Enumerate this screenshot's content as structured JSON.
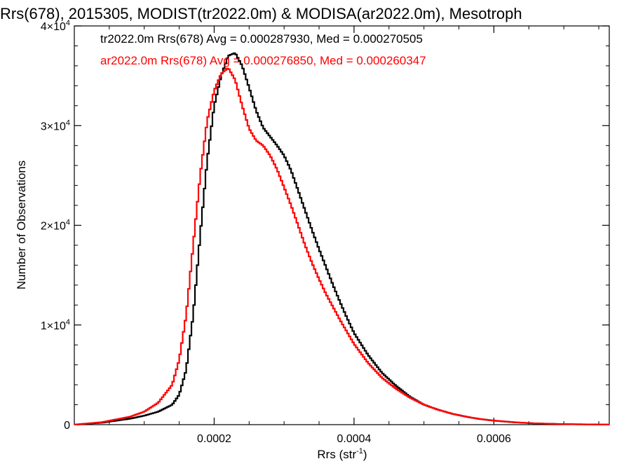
{
  "chart_data": {
    "type": "line",
    "title": "Rrs(678), 2015305, MODIST(tr2022.0m) & MODISA(ar2022.0m), Mesotroph",
    "xlabel": "Rrs (str",
    "xlabel_sup": "-1",
    "xlabel_end": ")",
    "ylabel": "Number of Observations",
    "xlim": [
      0.0,
      0.000765
    ],
    "ylim": [
      0,
      40000
    ],
    "grid": false,
    "x_ticks": [
      {
        "value": 0.0002,
        "label": "0.0002"
      },
      {
        "value": 0.0004,
        "label": "0.0004"
      },
      {
        "value": 0.0006,
        "label": "0.0006"
      }
    ],
    "y_ticks": [
      {
        "value": 0,
        "base": "0",
        "exp": ""
      },
      {
        "value": 10000,
        "base": "1×10",
        "exp": "4"
      },
      {
        "value": 20000,
        "base": "2×10",
        "exp": "4"
      },
      {
        "value": 30000,
        "base": "3×10",
        "exp": "4"
      },
      {
        "value": 40000,
        "base": "4×10",
        "exp": "4"
      }
    ],
    "legend_position": "top-left",
    "series": [
      {
        "name": "tr2022.0m Rrs(678)",
        "legend": "tr2022.0m Rrs(678) Avg = 0.000287930, Med = 0.000270505",
        "color": "#000000",
        "x": [
          0.0,
          4e-05,
          8e-05,
          0.0001,
          0.00012,
          0.00014,
          0.00015,
          0.00016,
          0.00017,
          0.00018,
          0.00019,
          0.0002,
          0.00021,
          0.00022,
          0.00023,
          0.00024,
          0.00025,
          0.00026,
          0.00027,
          0.00028,
          0.00029,
          0.0003,
          0.00031,
          0.00032,
          0.00033,
          0.00034,
          0.00035,
          0.00036,
          0.00037,
          0.00038,
          0.00039,
          0.0004,
          0.00042,
          0.00044,
          0.00046,
          0.00048,
          0.0005,
          0.00052,
          0.00054,
          0.00056,
          0.00058,
          0.0006,
          0.00063,
          0.00066,
          0.0007,
          0.000765
        ],
        "y": [
          0,
          200,
          600,
          900,
          1300,
          2000,
          3000,
          5500,
          11000,
          19000,
          26500,
          32000,
          35000,
          37000,
          37300,
          36000,
          33800,
          31500,
          29800,
          28900,
          28000,
          27000,
          25500,
          23500,
          21500,
          19500,
          17600,
          15800,
          14000,
          12300,
          10700,
          9200,
          7000,
          5200,
          3900,
          2800,
          2000,
          1500,
          1100,
          800,
          560,
          400,
          230,
          120,
          50,
          5
        ]
      },
      {
        "name": "ar2022.0m Rrs(678)",
        "legend": "ar2022.0m Rrs(678) Avg = 0.000276850, Med = 0.000260347",
        "color": "#ff0000",
        "x": [
          0.0,
          4e-05,
          8e-05,
          0.0001,
          0.00012,
          0.00014,
          0.00015,
          0.00016,
          0.00017,
          0.00018,
          0.00019,
          0.0002,
          0.00021,
          0.00022,
          0.00023,
          0.00024,
          0.00025,
          0.00026,
          0.00027,
          0.00028,
          0.00029,
          0.0003,
          0.00031,
          0.00032,
          0.00033,
          0.00034,
          0.00035,
          0.00036,
          0.00037,
          0.00038,
          0.00039,
          0.0004,
          0.00042,
          0.00044,
          0.00046,
          0.00048,
          0.0005,
          0.00052,
          0.00054,
          0.00056,
          0.00058,
          0.0006,
          0.00063,
          0.00066,
          0.0007,
          0.000765
        ],
        "y": [
          0,
          250,
          800,
          1300,
          2200,
          4000,
          6500,
          11000,
          18000,
          25000,
          30500,
          33500,
          35200,
          35800,
          34600,
          32000,
          29700,
          28500,
          28000,
          27000,
          25600,
          23800,
          22000,
          20000,
          18000,
          16200,
          14600,
          13100,
          11800,
          10500,
          9300,
          8100,
          6200,
          4700,
          3600,
          2700,
          2000,
          1500,
          1100,
          800,
          570,
          410,
          240,
          130,
          55,
          5
        ]
      }
    ]
  }
}
